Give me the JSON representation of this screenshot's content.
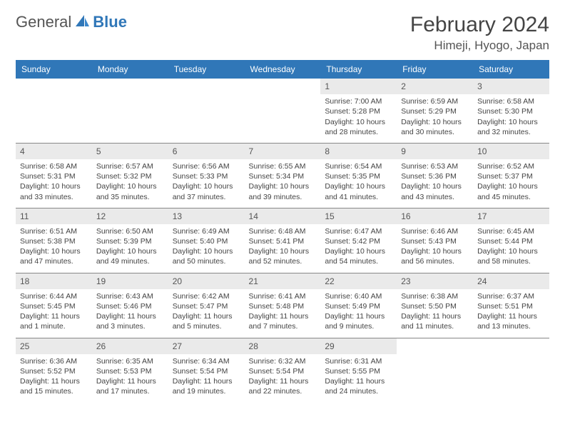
{
  "brand": {
    "text1": "General",
    "text2": "Blue",
    "accent": "#3077b8"
  },
  "title": "February 2024",
  "location": "Himeji, Hyogo, Japan",
  "header_bg": "#3077b8",
  "daynum_bg": "#eaeaea",
  "border_color": "#888888",
  "text_color": "#444444",
  "days_of_week": [
    "Sunday",
    "Monday",
    "Tuesday",
    "Wednesday",
    "Thursday",
    "Friday",
    "Saturday"
  ],
  "first_weekday_index": 4,
  "num_days": 29,
  "cells": [
    {
      "n": 1,
      "sunrise": "7:00 AM",
      "sunset": "5:28 PM",
      "daylight": "10 hours and 28 minutes."
    },
    {
      "n": 2,
      "sunrise": "6:59 AM",
      "sunset": "5:29 PM",
      "daylight": "10 hours and 30 minutes."
    },
    {
      "n": 3,
      "sunrise": "6:58 AM",
      "sunset": "5:30 PM",
      "daylight": "10 hours and 32 minutes."
    },
    {
      "n": 4,
      "sunrise": "6:58 AM",
      "sunset": "5:31 PM",
      "daylight": "10 hours and 33 minutes."
    },
    {
      "n": 5,
      "sunrise": "6:57 AM",
      "sunset": "5:32 PM",
      "daylight": "10 hours and 35 minutes."
    },
    {
      "n": 6,
      "sunrise": "6:56 AM",
      "sunset": "5:33 PM",
      "daylight": "10 hours and 37 minutes."
    },
    {
      "n": 7,
      "sunrise": "6:55 AM",
      "sunset": "5:34 PM",
      "daylight": "10 hours and 39 minutes."
    },
    {
      "n": 8,
      "sunrise": "6:54 AM",
      "sunset": "5:35 PM",
      "daylight": "10 hours and 41 minutes."
    },
    {
      "n": 9,
      "sunrise": "6:53 AM",
      "sunset": "5:36 PM",
      "daylight": "10 hours and 43 minutes."
    },
    {
      "n": 10,
      "sunrise": "6:52 AM",
      "sunset": "5:37 PM",
      "daylight": "10 hours and 45 minutes."
    },
    {
      "n": 11,
      "sunrise": "6:51 AM",
      "sunset": "5:38 PM",
      "daylight": "10 hours and 47 minutes."
    },
    {
      "n": 12,
      "sunrise": "6:50 AM",
      "sunset": "5:39 PM",
      "daylight": "10 hours and 49 minutes."
    },
    {
      "n": 13,
      "sunrise": "6:49 AM",
      "sunset": "5:40 PM",
      "daylight": "10 hours and 50 minutes."
    },
    {
      "n": 14,
      "sunrise": "6:48 AM",
      "sunset": "5:41 PM",
      "daylight": "10 hours and 52 minutes."
    },
    {
      "n": 15,
      "sunrise": "6:47 AM",
      "sunset": "5:42 PM",
      "daylight": "10 hours and 54 minutes."
    },
    {
      "n": 16,
      "sunrise": "6:46 AM",
      "sunset": "5:43 PM",
      "daylight": "10 hours and 56 minutes."
    },
    {
      "n": 17,
      "sunrise": "6:45 AM",
      "sunset": "5:44 PM",
      "daylight": "10 hours and 58 minutes."
    },
    {
      "n": 18,
      "sunrise": "6:44 AM",
      "sunset": "5:45 PM",
      "daylight": "11 hours and 1 minute."
    },
    {
      "n": 19,
      "sunrise": "6:43 AM",
      "sunset": "5:46 PM",
      "daylight": "11 hours and 3 minutes."
    },
    {
      "n": 20,
      "sunrise": "6:42 AM",
      "sunset": "5:47 PM",
      "daylight": "11 hours and 5 minutes."
    },
    {
      "n": 21,
      "sunrise": "6:41 AM",
      "sunset": "5:48 PM",
      "daylight": "11 hours and 7 minutes."
    },
    {
      "n": 22,
      "sunrise": "6:40 AM",
      "sunset": "5:49 PM",
      "daylight": "11 hours and 9 minutes."
    },
    {
      "n": 23,
      "sunrise": "6:38 AM",
      "sunset": "5:50 PM",
      "daylight": "11 hours and 11 minutes."
    },
    {
      "n": 24,
      "sunrise": "6:37 AM",
      "sunset": "5:51 PM",
      "daylight": "11 hours and 13 minutes."
    },
    {
      "n": 25,
      "sunrise": "6:36 AM",
      "sunset": "5:52 PM",
      "daylight": "11 hours and 15 minutes."
    },
    {
      "n": 26,
      "sunrise": "6:35 AM",
      "sunset": "5:53 PM",
      "daylight": "11 hours and 17 minutes."
    },
    {
      "n": 27,
      "sunrise": "6:34 AM",
      "sunset": "5:54 PM",
      "daylight": "11 hours and 19 minutes."
    },
    {
      "n": 28,
      "sunrise": "6:32 AM",
      "sunset": "5:54 PM",
      "daylight": "11 hours and 22 minutes."
    },
    {
      "n": 29,
      "sunrise": "6:31 AM",
      "sunset": "5:55 PM",
      "daylight": "11 hours and 24 minutes."
    }
  ],
  "labels": {
    "sunrise": "Sunrise:",
    "sunset": "Sunset:",
    "daylight": "Daylight:"
  }
}
